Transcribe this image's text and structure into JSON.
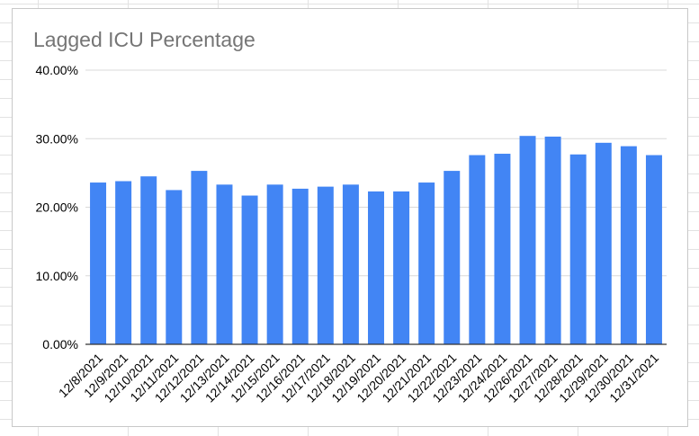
{
  "chart_data": {
    "type": "bar",
    "title": "Lagged ICU Percentage",
    "xlabel": "",
    "ylabel": "",
    "ylim": [
      0,
      40
    ],
    "yticks": [
      "0.00%",
      "10.00%",
      "20.00%",
      "30.00%",
      "40.00%"
    ],
    "grid": true,
    "legend": "none",
    "categories": [
      "12/8/2021",
      "12/9/2021",
      "12/10/2021",
      "12/11/2021",
      "12/12/2021",
      "12/13/2021",
      "12/14/2021",
      "12/15/2021",
      "12/16/2021",
      "12/17/2021",
      "12/18/2021",
      "12/19/2021",
      "12/20/2021",
      "12/21/2021",
      "12/22/2021",
      "12/23/2021",
      "12/24/2021",
      "12/26/2021",
      "12/27/2021",
      "12/28/2021",
      "12/29/2021",
      "12/30/2021",
      "12/31/2021"
    ],
    "values": [
      23.6,
      23.8,
      24.5,
      22.5,
      25.3,
      23.3,
      21.7,
      23.3,
      22.7,
      23.0,
      23.3,
      22.3,
      22.3,
      23.6,
      25.3,
      27.6,
      27.8,
      30.4,
      30.3,
      27.7,
      29.4,
      28.9,
      27.6
    ],
    "bar_color": "#4285f4",
    "grid_color": "#d9d9d9",
    "axis_color": "#333333"
  }
}
